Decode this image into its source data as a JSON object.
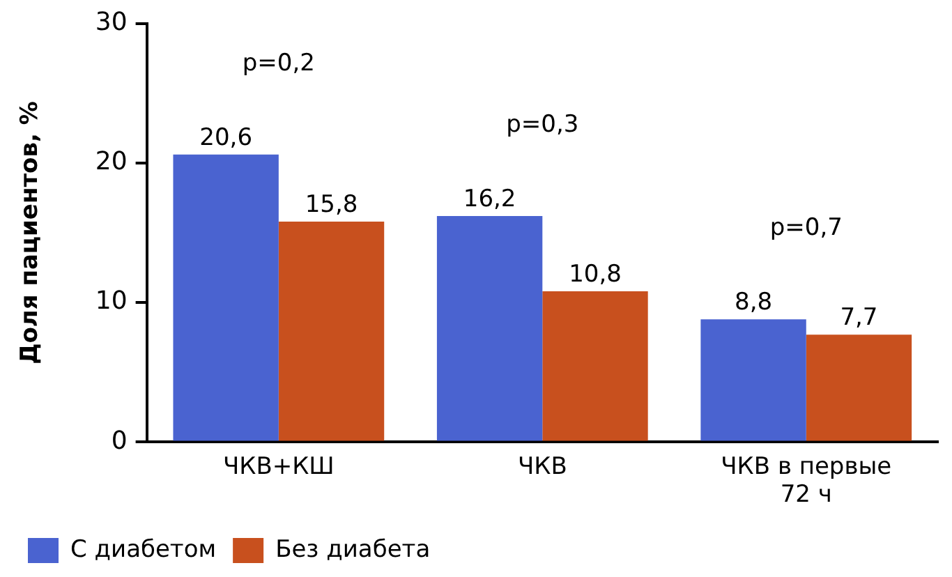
{
  "chart_data": {
    "type": "bar",
    "ylabel": "Доля пациентов, %",
    "categories": [
      "ЧКВ+КШ",
      "ЧКВ",
      "ЧКВ в первые 72 ч"
    ],
    "series": [
      {
        "name": "С диабетом",
        "color": "#4a63d0",
        "values": [
          20.6,
          16.2,
          8.8
        ],
        "value_labels": [
          "20,6",
          "16,2",
          "8,8"
        ]
      },
      {
        "name": "Без диабета",
        "color": "#c8501e",
        "values": [
          15.8,
          10.8,
          7.7
        ],
        "value_labels": [
          "15,8",
          "10,8",
          "7,7"
        ]
      }
    ],
    "ylim": [
      0,
      30
    ],
    "yticks": [
      0,
      10,
      20,
      30
    ],
    "grid": false,
    "legend": "bottom",
    "annotations": [
      "p=0,2",
      "p=0,3",
      "p=0,7"
    ]
  }
}
